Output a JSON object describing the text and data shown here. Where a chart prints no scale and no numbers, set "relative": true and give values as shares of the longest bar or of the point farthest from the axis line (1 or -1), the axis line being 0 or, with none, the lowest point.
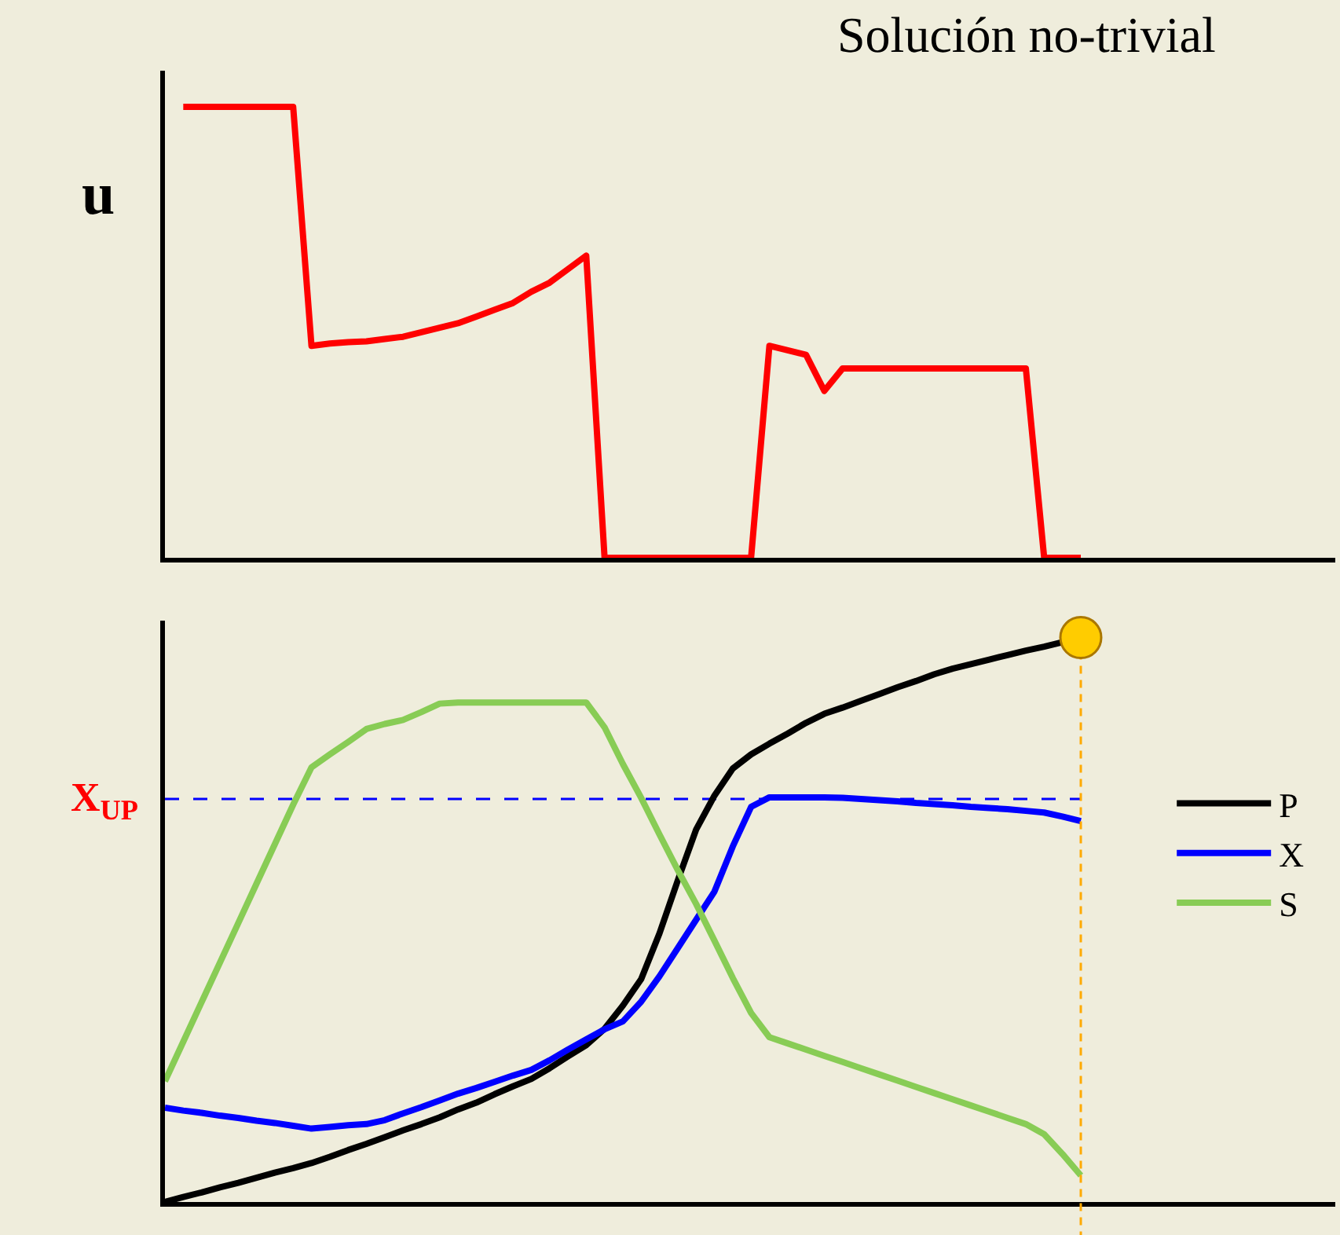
{
  "chart_data": [
    {
      "type": "line",
      "title": "Solución no-trivial",
      "ylabel": "u",
      "relative": true,
      "legend": false,
      "categories": [
        null,
        null,
        null,
        null,
        null,
        null,
        null,
        null,
        null,
        null,
        null,
        null,
        null,
        null,
        null,
        null,
        null,
        null,
        null,
        null,
        null,
        null,
        null,
        null,
        null,
        null,
        null,
        null,
        null,
        null,
        null,
        null,
        null,
        null,
        null,
        null,
        null,
        null,
        null,
        null,
        null,
        null,
        null,
        null,
        null,
        null,
        null,
        null,
        null,
        null,
        null
      ],
      "series": [
        {
          "color": "#ff0000",
          "values": [
            null,
            1.0,
            1.0,
            1.0,
            1.0,
            1.0,
            1.0,
            1.0,
            0.47,
            0.475,
            0.478,
            0.48,
            0.485,
            0.49,
            0.5,
            0.51,
            0.52,
            0.535,
            0.55,
            0.565,
            0.59,
            0.61,
            0.64,
            0.67,
            0,
            0,
            0,
            0,
            0,
            0,
            0,
            0,
            0,
            0.47,
            0.46,
            0.45,
            0.37,
            0.42,
            0.42,
            0.42,
            0.42,
            0.42,
            0.42,
            0.42,
            0.42,
            0.42,
            0.42,
            0.42,
            0,
            0,
            0
          ]
        }
      ]
    },
    {
      "type": "line",
      "relative": true,
      "legend": "right",
      "categories": [
        null,
        null,
        null,
        null,
        null,
        null,
        null,
        null,
        null,
        null,
        null,
        null,
        null,
        null,
        null,
        null,
        null,
        null,
        null,
        null,
        null,
        null,
        null,
        null,
        null,
        null,
        null,
        null,
        null,
        null,
        null,
        null,
        null,
        null,
        null,
        null,
        null,
        null,
        null,
        null,
        null,
        null,
        null,
        null,
        null,
        null,
        null,
        null,
        null,
        null,
        null
      ],
      "series": [
        {
          "name": "P",
          "color": "#000000",
          "values": [
            0,
            0.009,
            0.017,
            0.026,
            0.034,
            0.043,
            0.052,
            0.06,
            0.069,
            0.08,
            0.092,
            0.103,
            0.115,
            0.127,
            0.138,
            0.15,
            0.164,
            0.176,
            0.191,
            0.205,
            0.218,
            0.237,
            0.258,
            0.278,
            0.307,
            0.348,
            0.395,
            0.476,
            0.57,
            0.66,
            0.72,
            0.768,
            0.793,
            0.812,
            0.83,
            0.849,
            0.865,
            0.876,
            0.888,
            0.9,
            0.912,
            0.923,
            0.935,
            0.945,
            0.953,
            0.961,
            0.969,
            0.977,
            0.984,
            0.992,
            1.0
          ]
        },
        {
          "name": "X",
          "color": "#0000ff",
          "values": [
            0.167,
            0.162,
            0.158,
            0.153,
            0.149,
            0.144,
            0.14,
            0.135,
            0.13,
            0.133,
            0.136,
            0.138,
            0.145,
            0.157,
            0.168,
            0.18,
            0.192,
            0.202,
            0.213,
            0.224,
            0.234,
            0.251,
            0.27,
            0.288,
            0.306,
            0.32,
            0.355,
            0.4,
            0.45,
            0.5,
            0.55,
            0.63,
            0.7,
            0.717,
            0.717,
            0.717,
            0.717,
            0.716,
            0.714,
            0.712,
            0.71,
            0.707,
            0.705,
            0.703,
            0.7,
            0.698,
            0.696,
            0.693,
            0.69,
            0.683,
            0.675
          ]
        },
        {
          "name": "S",
          "color": "#88cc55",
          "values": [
            0.214,
            0.284,
            0.354,
            0.424,
            0.494,
            0.564,
            0.634,
            0.704,
            0.77,
            0.793,
            0.815,
            0.838,
            0.847,
            0.854,
            0.868,
            0.883,
            0.885,
            0.885,
            0.885,
            0.885,
            0.885,
            0.885,
            0.885,
            0.885,
            0.841,
            0.776,
            0.716,
            0.651,
            0.588,
            0.528,
            0.463,
            0.397,
            0.335,
            0.292,
            0.281,
            0.27,
            0.259,
            0.248,
            0.237,
            0.226,
            0.215,
            0.204,
            0.193,
            0.182,
            0.171,
            0.16,
            0.149,
            0.138,
            0.12,
            0.085,
            0.047
          ]
        }
      ],
      "ref_lines": [
        {
          "axis": "y",
          "value": 0.714,
          "label": "X$_{UP}$",
          "color": "#0000ff",
          "line_style": "dashed"
        }
      ]
    }
  ]
}
